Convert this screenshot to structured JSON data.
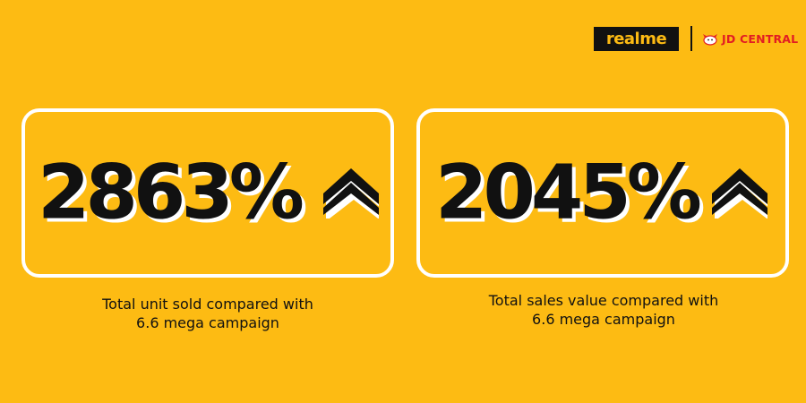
{
  "brand": {
    "realme_label": "realme",
    "partner_label": "JD CENTRAL",
    "background_color": "#FDBB13",
    "partner_color": "#E21D23"
  },
  "stats": [
    {
      "value": "2863%",
      "caption_line1": "Total unit sold compared with",
      "caption_line2": "6.6 mega campaign",
      "icon": "double-chevron-up-icon"
    },
    {
      "value": "2045%",
      "caption_line1": "Total sales value compared with",
      "caption_line2": "6.6 mega campaign",
      "icon": "double-chevron-up-icon"
    }
  ]
}
